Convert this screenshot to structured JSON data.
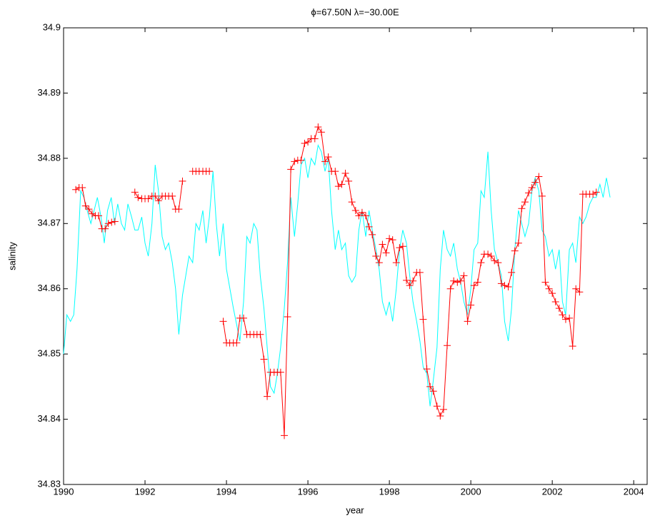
{
  "chart_data": {
    "type": "line",
    "title": "ϕ=67.50N  λ=−30.00E",
    "x_label": "year",
    "y_label": "salinity",
    "xlim": [
      1990,
      2004.33
    ],
    "xticks": [
      1990,
      1992,
      1994,
      1996,
      1998,
      2000,
      2002,
      2004
    ],
    "ylim": [
      34.83,
      34.9
    ],
    "yticks": [
      34.83,
      34.84,
      34.85,
      34.86,
      34.87,
      34.88,
      34.89,
      34.9
    ],
    "series": [
      {
        "color": "#00ffff",
        "marker": "none",
        "x": [
          1990.0,
          1990.08,
          1990.17,
          1990.25,
          1990.33,
          1990.42,
          1990.5,
          1990.58,
          1990.67,
          1990.75,
          1990.83,
          1990.92,
          1991.0,
          1991.08,
          1991.17,
          1991.25,
          1991.33,
          1991.42,
          1991.5,
          1991.58,
          1991.67,
          1991.75,
          1991.83,
          1991.92,
          1992.0,
          1992.08,
          1992.17,
          1992.25,
          1992.33,
          1992.42,
          1992.5,
          1992.58,
          1992.67,
          1992.75,
          1992.83,
          1992.92,
          1993.0,
          1993.08,
          1993.17,
          1993.25,
          1993.33,
          1993.42,
          1993.5,
          1993.58,
          1993.67,
          1993.75,
          1993.83,
          1993.92,
          1994.0,
          1994.17,
          1994.33,
          1994.42,
          1994.5,
          1994.58,
          1994.67,
          1994.75,
          1994.83,
          1994.92,
          1995.0,
          1995.08,
          1995.17,
          1995.25,
          1995.33,
          1995.42,
          1995.5,
          1995.58,
          1995.67,
          1995.75,
          1995.83,
          1995.92,
          1996.0,
          1996.08,
          1996.17,
          1996.25,
          1996.33,
          1996.42,
          1996.5,
          1996.58,
          1996.67,
          1996.75,
          1996.83,
          1996.92,
          1997.0,
          1997.08,
          1997.17,
          1997.25,
          1997.33,
          1997.42,
          1997.5,
          1997.58,
          1997.67,
          1997.75,
          1997.83,
          1997.92,
          1998.0,
          1998.08,
          1998.17,
          1998.25,
          1998.33,
          1998.42,
          1998.5,
          1998.58,
          1998.67,
          1998.75,
          1998.83,
          1998.92,
          1999.0,
          1999.08,
          1999.17,
          1999.25,
          1999.33,
          1999.42,
          1999.5,
          1999.58,
          1999.67,
          1999.75,
          1999.83,
          1999.92,
          2000.0,
          2000.08,
          2000.17,
          2000.25,
          2000.33,
          2000.42,
          2000.5,
          2000.58,
          2000.67,
          2000.75,
          2000.83,
          2000.92,
          2001.0,
          2001.08,
          2001.17,
          2001.25,
          2001.33,
          2001.42,
          2001.5,
          2001.58,
          2001.67,
          2001.75,
          2001.83,
          2001.92,
          2002.0,
          2002.08,
          2002.17,
          2002.25,
          2002.33,
          2002.42,
          2002.5,
          2002.58,
          2002.67,
          2002.75,
          2002.83,
          2002.92,
          2003.0,
          2003.08,
          2003.17,
          2003.25,
          2003.33,
          2003.42
        ],
        "values": [
          34.85,
          34.856,
          34.855,
          34.856,
          34.863,
          34.875,
          34.874,
          34.872,
          34.87,
          34.872,
          34.874,
          34.871,
          34.867,
          34.872,
          34.874,
          34.87,
          34.873,
          34.87,
          34.869,
          34.873,
          34.871,
          34.869,
          34.869,
          34.871,
          34.867,
          34.865,
          34.87,
          34.879,
          34.875,
          34.868,
          34.866,
          34.867,
          34.864,
          34.86,
          34.853,
          34.859,
          34.862,
          34.865,
          34.864,
          34.87,
          34.869,
          34.872,
          34.867,
          34.871,
          34.878,
          34.87,
          34.865,
          34.87,
          34.863,
          34.857,
          34.852,
          34.858,
          34.868,
          34.867,
          34.87,
          34.869,
          34.862,
          34.857,
          34.851,
          34.845,
          34.844,
          34.847,
          34.851,
          34.857,
          34.864,
          34.874,
          34.868,
          34.873,
          34.879,
          34.88,
          34.877,
          34.88,
          34.879,
          34.882,
          34.881,
          34.878,
          34.88,
          34.872,
          34.866,
          34.869,
          34.866,
          34.867,
          34.862,
          34.861,
          34.862,
          34.869,
          34.872,
          34.868,
          34.872,
          34.869,
          34.866,
          34.863,
          34.858,
          34.856,
          34.858,
          34.855,
          34.86,
          34.866,
          34.869,
          34.867,
          34.862,
          34.858,
          34.855,
          34.852,
          34.848,
          34.847,
          34.842,
          34.846,
          34.851,
          34.863,
          34.869,
          34.866,
          34.865,
          34.867,
          34.863,
          34.861,
          34.858,
          34.856,
          34.86,
          34.866,
          34.867,
          34.875,
          34.874,
          34.881,
          34.872,
          34.866,
          34.864,
          34.862,
          34.855,
          34.852,
          34.857,
          34.866,
          34.872,
          34.87,
          34.868,
          34.87,
          34.875,
          34.877,
          34.875,
          34.869,
          34.868,
          34.865,
          34.866,
          34.863,
          34.866,
          34.858,
          34.856,
          34.866,
          34.867,
          34.864,
          34.871,
          34.87,
          34.871,
          34.873,
          34.874,
          34.874,
          34.876,
          34.874,
          34.877,
          34.874
        ]
      },
      {
        "color": "#ff0000",
        "marker": "plus",
        "x": [
          1990.3,
          1990.38,
          1990.46,
          1990.54,
          1990.62,
          1990.7,
          1990.78,
          1990.86,
          1990.94,
          1991.02,
          1991.1,
          1991.18,
          1991.26,
          1991.5,
          1991.75,
          1991.83,
          1991.92,
          1992.0,
          1992.08,
          1992.17,
          1992.25,
          1992.33,
          1992.42,
          1992.5,
          1992.58,
          1992.67,
          1992.75,
          1992.83,
          1992.92,
          1993.05,
          1993.17,
          1993.25,
          1993.33,
          1993.42,
          1993.5,
          1993.58,
          1993.75,
          1993.92,
          1994.0,
          1994.08,
          1994.17,
          1994.25,
          1994.33,
          1994.42,
          1994.5,
          1994.58,
          1994.67,
          1994.75,
          1994.83,
          1994.92,
          1995.0,
          1995.08,
          1995.17,
          1995.25,
          1995.33,
          1995.42,
          1995.5,
          1995.58,
          1995.67,
          1995.75,
          1995.83,
          1995.92,
          1996.0,
          1996.08,
          1996.17,
          1996.25,
          1996.33,
          1996.42,
          1996.5,
          1996.58,
          1996.67,
          1996.75,
          1996.83,
          1996.92,
          1997.0,
          1997.08,
          1997.17,
          1997.25,
          1997.33,
          1997.42,
          1997.5,
          1997.58,
          1997.67,
          1997.75,
          1997.83,
          1997.92,
          1998.0,
          1998.08,
          1998.17,
          1998.25,
          1998.33,
          1998.42,
          1998.5,
          1998.58,
          1998.67,
          1998.75,
          1998.83,
          1998.92,
          1999.0,
          1999.08,
          1999.17,
          1999.25,
          1999.33,
          1999.42,
          1999.5,
          1999.58,
          1999.67,
          1999.75,
          1999.83,
          1999.92,
          2000.0,
          2000.08,
          2000.17,
          2000.25,
          2000.33,
          2000.42,
          2000.5,
          2000.58,
          2000.67,
          2000.75,
          2000.83,
          2000.92,
          2001.0,
          2001.08,
          2001.17,
          2001.25,
          2001.33,
          2001.42,
          2001.5,
          2001.58,
          2001.67,
          2001.75,
          2001.83,
          2001.92,
          2002.0,
          2002.08,
          2002.17,
          2002.25,
          2002.33,
          2002.42,
          2002.5,
          2002.58,
          2002.67,
          2002.75,
          2002.83,
          2002.92,
          2003.0,
          2003.08
        ],
        "values": [
          34.8752,
          34.8755,
          34.8755,
          34.8727,
          34.8722,
          34.8715,
          34.8712,
          34.8712,
          34.8692,
          34.8692,
          34.87,
          34.8702,
          34.8703,
          null,
          34.8748,
          34.874,
          34.8738,
          34.8738,
          34.8738,
          34.8742,
          34.8742,
          34.8735,
          34.8742,
          34.8742,
          34.8742,
          34.8742,
          34.8722,
          34.8722,
          34.8765,
          null,
          34.878,
          34.878,
          34.878,
          34.878,
          34.878,
          34.878,
          null,
          34.855,
          34.8517,
          34.8517,
          34.8517,
          34.8517,
          34.8555,
          34.8555,
          34.853,
          34.853,
          34.853,
          34.853,
          34.853,
          34.8492,
          34.8435,
          34.8472,
          34.8472,
          34.8472,
          34.8472,
          34.8375,
          34.8557,
          34.8783,
          34.8795,
          34.8797,
          34.8797,
          34.8823,
          34.8825,
          34.883,
          34.883,
          34.8848,
          34.884,
          34.8795,
          34.8802,
          34.878,
          34.878,
          34.8757,
          34.876,
          34.8777,
          34.8765,
          34.8733,
          34.872,
          34.8712,
          34.8717,
          34.8712,
          34.8695,
          34.8683,
          34.865,
          34.864,
          34.8668,
          34.8655,
          34.8677,
          34.8675,
          34.864,
          34.8663,
          34.8665,
          34.8613,
          34.8605,
          34.8612,
          34.8625,
          34.8625,
          34.8553,
          34.8477,
          34.845,
          34.8443,
          34.842,
          34.8405,
          34.8415,
          34.8513,
          34.86,
          34.8612,
          34.861,
          34.8612,
          34.862,
          34.855,
          34.8575,
          34.8605,
          34.861,
          34.864,
          34.8653,
          34.8653,
          34.865,
          34.8643,
          34.864,
          34.8608,
          34.8605,
          34.8603,
          34.8625,
          34.8658,
          34.867,
          34.8723,
          34.8733,
          34.8747,
          34.8755,
          34.8763,
          34.8772,
          34.8742,
          34.861,
          34.86,
          34.8593,
          34.858,
          34.857,
          34.856,
          34.8553,
          34.8555,
          34.8512,
          34.86,
          34.8595,
          34.8745,
          34.8745,
          34.8745,
          34.8745,
          34.8748
        ]
      }
    ]
  }
}
